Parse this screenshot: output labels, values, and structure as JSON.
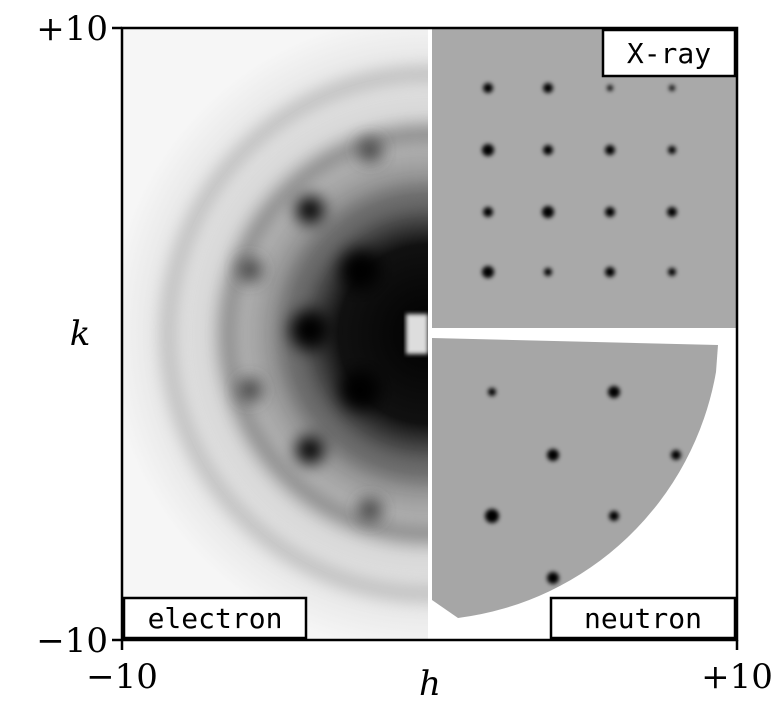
{
  "axes": {
    "x": {
      "label": "h",
      "ticks": [
        "−10",
        "+10"
      ]
    },
    "y": {
      "label": "k",
      "ticks": [
        "+10",
        "−10"
      ]
    }
  },
  "panels": [
    {
      "label": "electron"
    },
    {
      "label": "X-ray"
    },
    {
      "label": "neutron"
    }
  ]
}
